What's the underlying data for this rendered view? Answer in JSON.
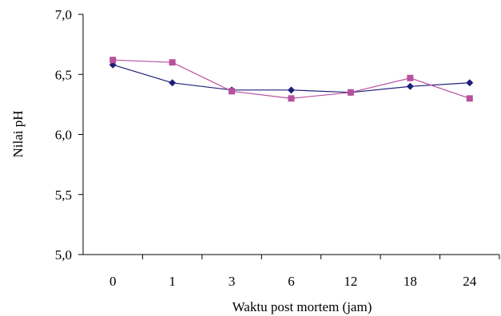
{
  "chart_data": {
    "type": "line",
    "title": "",
    "xlabel": "Waktu post mortem (jam)",
    "ylabel": "Nilai pH",
    "categories": [
      "0",
      "1",
      "3",
      "6",
      "12",
      "18",
      "24"
    ],
    "ylim": [
      5.0,
      7.0
    ],
    "yticks": [
      5.0,
      5.5,
      6.0,
      6.5,
      7.0
    ],
    "ytick_labels": [
      "5,0",
      "5,5",
      "6,0",
      "6,5",
      "7,0"
    ],
    "grid": false,
    "legend": "none",
    "series": [
      {
        "color": "#1f1f7a",
        "marker": "diamond",
        "values": [
          6.58,
          6.43,
          6.37,
          6.37,
          6.35,
          6.4,
          6.43
        ]
      },
      {
        "color": "#b8509e",
        "marker": "square",
        "values": [
          6.62,
          6.6,
          6.36,
          6.3,
          6.35,
          6.47,
          6.3
        ]
      }
    ]
  }
}
